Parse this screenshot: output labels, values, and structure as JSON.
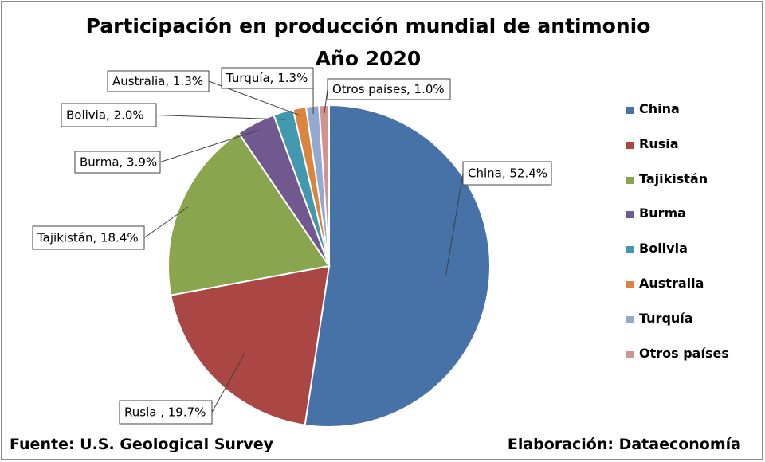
{
  "chart_data": {
    "type": "pie",
    "title": "Participación en producción mundial de antimonio",
    "subtitle": "Año 2020",
    "slices": [
      {
        "name": "China",
        "value": 52.4,
        "color": "#4672A8",
        "label": "China, 52.4%"
      },
      {
        "name": "Rusia",
        "value": 19.7,
        "color": "#AA4643",
        "label": "Rusia , 19.7%"
      },
      {
        "name": "Tajikistán",
        "value": 18.4,
        "color": "#89A54E",
        "label": "Tajikistán, 18.4%"
      },
      {
        "name": "Burma",
        "value": 3.9,
        "color": "#71588F",
        "label": "Burma, 3.9%"
      },
      {
        "name": "Bolivia",
        "value": 2.0,
        "color": "#4198AF",
        "label": "Bolivia, 2.0%"
      },
      {
        "name": "Australia",
        "value": 1.3,
        "color": "#DB843D",
        "label": "Australia, 1.3%"
      },
      {
        "name": "Turquía",
        "value": 1.3,
        "color": "#93A9CF",
        "label": "Turquía, 1.3%"
      },
      {
        "name": "Otros países",
        "value": 1.0,
        "color": "#D19392",
        "label": "Otros países, 1.0%"
      }
    ],
    "legend_position": "right"
  },
  "footer": {
    "source": "Fuente: U.S. Geological Survey",
    "credit": "Elaboración: Dataeconomía"
  }
}
